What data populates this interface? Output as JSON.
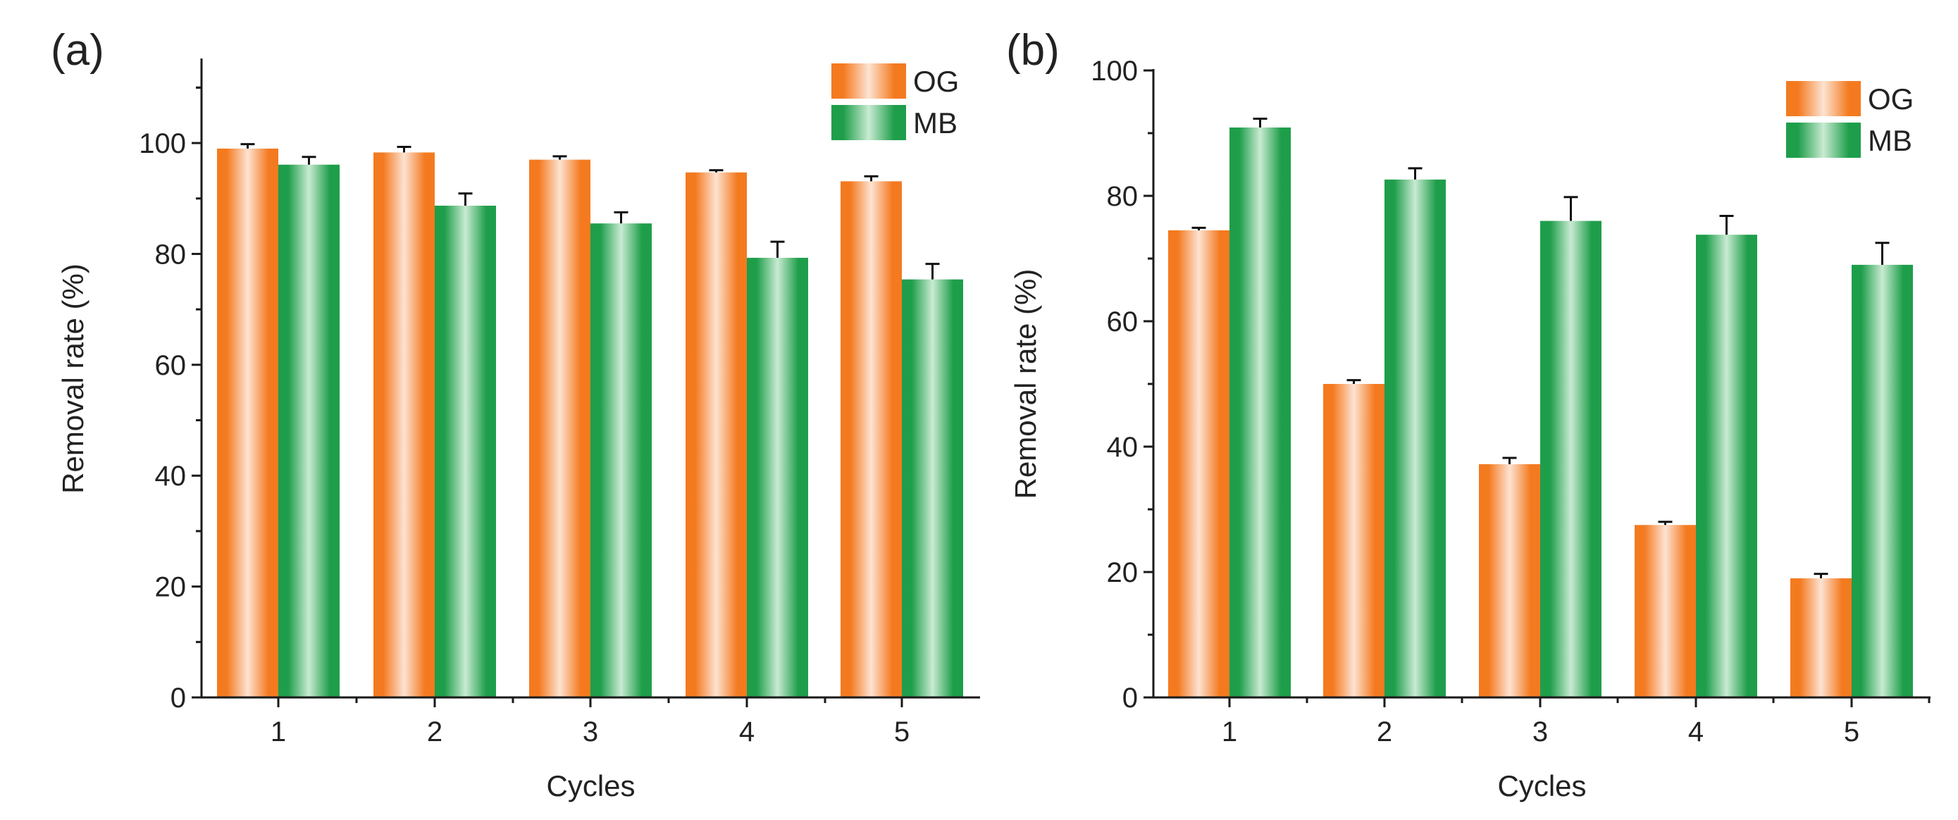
{
  "figure": {
    "panels": [
      {
        "label": "(a)"
      },
      {
        "label": "(b)"
      }
    ]
  },
  "colors": {
    "og_edge": "#f47a20",
    "og_center": "#fde3d2",
    "mb_edge": "#1e9e4a",
    "mb_center": "#c9ebd2",
    "axis": "#1a1a1a",
    "error_bar": "#111111"
  },
  "chart_data": [
    {
      "type": "bar",
      "panel_label": "(a)",
      "title": "",
      "xlabel": "Cycles",
      "ylabel": "Removal rate  (%)",
      "categories": [
        "1",
        "2",
        "3",
        "4",
        "5"
      ],
      "ylim": [
        0,
        115
      ],
      "yticks": [
        0,
        20,
        40,
        60,
        80,
        100
      ],
      "ytick_labels": [
        "0",
        "20",
        "40",
        "60",
        "80",
        "100"
      ],
      "y_minor_step": 10,
      "grid": false,
      "legend_position": "top-right",
      "series": [
        {
          "name": "OG",
          "values": [
            99.0,
            98.3,
            97.0,
            94.7,
            93.1
          ],
          "errors": [
            0.8,
            1.0,
            0.6,
            0.4,
            0.9
          ]
        },
        {
          "name": "MB",
          "values": [
            96.1,
            88.7,
            85.5,
            79.3,
            75.4
          ],
          "errors": [
            1.4,
            2.2,
            2.0,
            2.9,
            2.8
          ]
        }
      ]
    },
    {
      "type": "bar",
      "panel_label": "(b)",
      "title": "",
      "xlabel": "Cycles",
      "ylabel": "Removal rate  (%)",
      "categories": [
        "1",
        "2",
        "3",
        "4",
        "5"
      ],
      "ylim": [
        0,
        100
      ],
      "yticks": [
        0,
        20,
        40,
        60,
        80,
        100
      ],
      "ytick_labels": [
        "0",
        "20",
        "40",
        "60",
        "80",
        "100"
      ],
      "y_minor_step": 10,
      "grid": false,
      "legend_position": "top-right",
      "series": [
        {
          "name": "OG",
          "values": [
            74.5,
            50.0,
            37.2,
            27.5,
            19.0
          ],
          "errors": [
            0.4,
            0.6,
            1.0,
            0.5,
            0.7
          ]
        },
        {
          "name": "MB",
          "values": [
            90.9,
            82.6,
            76.0,
            73.8,
            69.0
          ],
          "errors": [
            1.4,
            1.8,
            3.8,
            3.0,
            3.5
          ]
        }
      ]
    }
  ]
}
